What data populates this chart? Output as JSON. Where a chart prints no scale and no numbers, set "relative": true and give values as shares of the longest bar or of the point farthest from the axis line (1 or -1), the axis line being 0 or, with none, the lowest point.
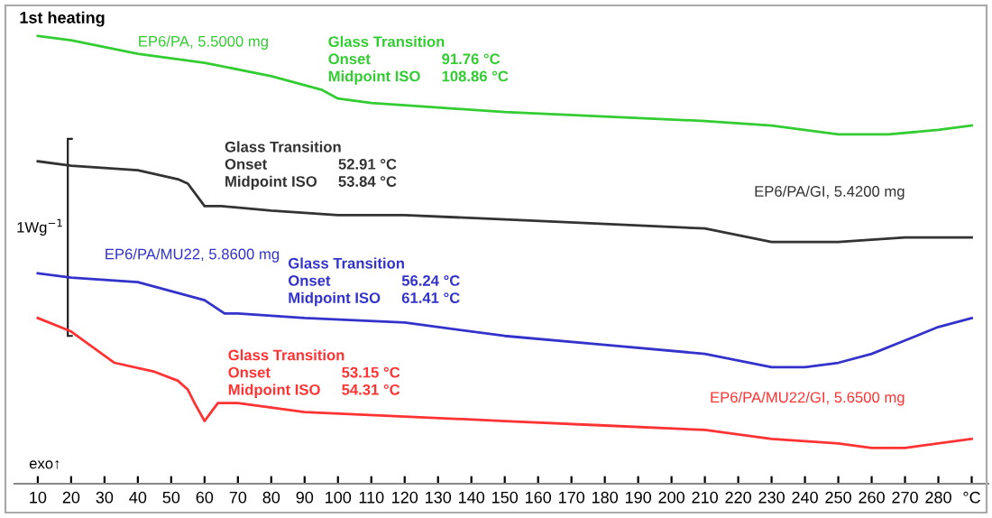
{
  "chart_data": {
    "type": "line",
    "title": "1st heating",
    "relative": true,
    "legend": false,
    "grid": false,
    "marker": "none",
    "line_style": "solid",
    "tick_labels": "x",
    "xlim": [
      3,
      295
    ],
    "xticks": [
      10,
      20,
      30,
      40,
      50,
      60,
      70,
      80,
      90,
      100,
      110,
      120,
      130,
      140,
      150,
      160,
      170,
      180,
      190,
      200,
      210,
      220,
      230,
      240,
      250,
      260,
      270,
      280,
      {
        "value": 290,
        "label": "°C"
      }
    ],
    "series": [
      {
        "name": "EP6/PA, 5.5000 mg",
        "color": "#33cc33",
        "x": [
          10,
          20,
          40,
          60,
          80,
          95,
          100,
          110,
          130,
          150,
          180,
          210,
          230,
          250,
          265,
          280,
          290
        ],
        "values": [
          1.0,
          0.99,
          0.96,
          0.94,
          0.91,
          0.88,
          0.86,
          0.85,
          0.84,
          0.83,
          0.82,
          0.81,
          0.8,
          0.78,
          0.78,
          0.79,
          0.8
        ]
      },
      {
        "name": "EP6/PA/GI, 5.4200 mg",
        "color": "#333333",
        "x": [
          10,
          20,
          40,
          52,
          55,
          58,
          60,
          65,
          80,
          100,
          120,
          150,
          180,
          210,
          230,
          250,
          270,
          290
        ],
        "values": [
          0.72,
          0.71,
          0.7,
          0.68,
          0.67,
          0.64,
          0.62,
          0.62,
          0.61,
          0.6,
          0.6,
          0.59,
          0.58,
          0.57,
          0.54,
          0.54,
          0.55,
          0.55
        ]
      },
      {
        "name": "EP6/PA/MU22, 5.8600 mg",
        "color": "#3333cc",
        "x": [
          10,
          20,
          40,
          55,
          60,
          66,
          70,
          90,
          120,
          150,
          180,
          210,
          230,
          240,
          250,
          260,
          270,
          280,
          290
        ],
        "values": [
          0.47,
          0.46,
          0.45,
          0.42,
          0.41,
          0.38,
          0.38,
          0.37,
          0.36,
          0.33,
          0.31,
          0.29,
          0.26,
          0.26,
          0.27,
          0.29,
          0.32,
          0.35,
          0.37
        ]
      },
      {
        "name": "EP6/PA/MU22/GI, 5.6500 mg",
        "color": "#ff3333",
        "x": [
          10,
          20,
          33,
          45,
          52,
          55,
          57,
          60,
          62,
          64,
          70,
          90,
          120,
          150,
          180,
          210,
          230,
          250,
          260,
          270,
          290
        ],
        "values": [
          0.37,
          0.34,
          0.27,
          0.25,
          0.23,
          0.21,
          0.18,
          0.14,
          0.16,
          0.18,
          0.18,
          0.16,
          0.15,
          0.14,
          0.13,
          0.12,
          0.1,
          0.09,
          0.08,
          0.08,
          0.1
        ]
      }
    ],
    "annotations": [
      "Glass Transition\nOnset                 91.76 °C\nMidpoint ISO     108.86 °C",
      "Glass Transition\nOnset                 52.91 °C\nMidpoint ISO     53.84 °C",
      "Glass Transition\nOnset                 56.24 °C\nMidpoint ISO     61.41 °C",
      "Glass Transition\nOnset                 53.15 °C\nMidpoint ISO     54.31 °C",
      "1Wg$^{−1}$",
      "exo↑"
    ]
  }
}
